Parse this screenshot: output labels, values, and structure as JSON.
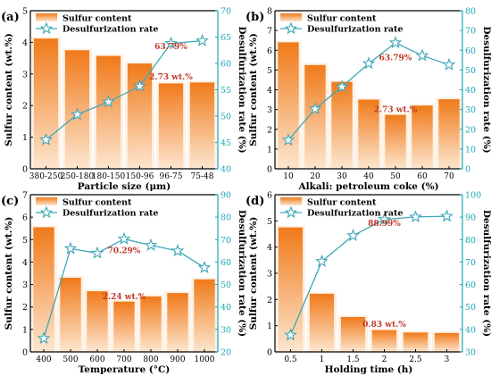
{
  "colors": {
    "bar_dark": "#f07a1a",
    "bar_light": "#fde6cf",
    "line": "#3fa7b8",
    "star_fill": "#ffffff",
    "annot": "#c0392b",
    "right_axis": "#1aa6b6",
    "left_axis": "#000000"
  },
  "icons": {
    "marker": "star-icon"
  },
  "chart_data": [
    {
      "panel": "(a)",
      "type": "bar",
      "categories": [
        "380-250",
        "250-180",
        "180-150",
        "150-96",
        "96-75",
        "75-48"
      ],
      "series": [
        {
          "name": "Sulfur content",
          "axis": "left",
          "values": [
            4.12,
            3.75,
            3.57,
            3.33,
            2.7,
            2.73
          ]
        },
        {
          "name": "Desulfurization rate",
          "axis": "right",
          "type": "line",
          "values": [
            45.5,
            50.3,
            52.7,
            55.7,
            63.79,
            64.3
          ]
        }
      ],
      "xlabel": "Particle size (μm)",
      "ylabel": "Sulfur content (wt.%)",
      "y2label": "Desulfurization rate (%)",
      "ylim": [
        0,
        5
      ],
      "yticks": [
        "0",
        "1",
        "2",
        "3",
        "4",
        "5"
      ],
      "y2lim": [
        40,
        70
      ],
      "y2ticks": [
        "40",
        "45",
        "50",
        "55",
        "60",
        "65",
        "70"
      ],
      "annotations": [
        {
          "text": "63.79%",
          "x_index": 4,
          "y": 62.7,
          "axis": "right"
        },
        {
          "text": "2.73 wt.%",
          "x_index": 4,
          "y": 2.82,
          "axis": "left"
        }
      ],
      "legend": [
        "Sulfur content",
        "Desulfurization rate"
      ],
      "legend_position": "top-left"
    },
    {
      "panel": "(b)",
      "type": "bar",
      "categories": [
        "10",
        "20",
        "30",
        "40",
        "50",
        "60",
        "70"
      ],
      "series": [
        {
          "name": "Sulfur content",
          "axis": "left",
          "values": [
            6.4,
            5.25,
            4.4,
            3.5,
            2.73,
            3.2,
            3.52
          ]
        },
        {
          "name": "Desulfurization rate",
          "axis": "right",
          "type": "line",
          "values": [
            14.5,
            30.3,
            41.5,
            53.3,
            63.79,
            57.3,
            52.6
          ]
        }
      ],
      "xlabel": "Alkali: petroleum coke (%)",
      "ylabel": "Sulfur content (wt.%)",
      "y2label": "Desulfurization rate (%)",
      "ylim": [
        0,
        8
      ],
      "yticks": [
        "0",
        "1",
        "2",
        "3",
        "4",
        "5",
        "6",
        "7",
        "8"
      ],
      "y2lim": [
        0,
        80
      ],
      "y2ticks": [
        "0",
        "10",
        "20",
        "30",
        "40",
        "50",
        "60",
        "70",
        "80"
      ],
      "annotations": [
        {
          "text": "63.79%",
          "x_index": 4,
          "y": 55,
          "axis": "right"
        },
        {
          "text": "2.73 wt.%",
          "x_index": 4,
          "y": 2.88,
          "axis": "left"
        }
      ],
      "legend": [
        "Sulfur content",
        "Desulfurization rate"
      ],
      "legend_position": "top-left"
    },
    {
      "panel": "(c)",
      "type": "bar",
      "categories": [
        "400",
        "500",
        "600",
        "700",
        "800",
        "900",
        "1000"
      ],
      "series": [
        {
          "name": "Sulfur content",
          "axis": "left",
          "values": [
            5.55,
            3.3,
            2.7,
            2.24,
            2.47,
            2.62,
            3.23
          ]
        },
        {
          "name": "Desulfurization rate",
          "axis": "right",
          "type": "line",
          "values": [
            26,
            66,
            64,
            70.29,
            67.5,
            65,
            57.5
          ]
        }
      ],
      "xlabel": "Temperature (°C)",
      "ylabel": "Sulfur content (wt.%)",
      "y2label": "Desulfurization rate (%)",
      "ylim": [
        0,
        7
      ],
      "yticks": [
        "0",
        "1",
        "2",
        "3",
        "4",
        "5",
        "6",
        "7"
      ],
      "y2lim": [
        20,
        90
      ],
      "y2ticks": [
        "20",
        "30",
        "40",
        "50",
        "60",
        "70",
        "80",
        "90"
      ],
      "annotations": [
        {
          "text": "70.29%",
          "x_index": 3,
          "y": 64,
          "axis": "right"
        },
        {
          "text": "2.24 wt.%",
          "x_index": 3,
          "y": 2.35,
          "axis": "left"
        }
      ],
      "legend": [
        "Sulfur content",
        "Desulfurization rate"
      ],
      "legend_position": "top-left"
    },
    {
      "panel": "(d)",
      "type": "bar",
      "categories": [
        "0.5",
        "1",
        "1.5",
        "2",
        "2.5",
        "3"
      ],
      "series": [
        {
          "name": "Sulfur content",
          "axis": "left",
          "values": [
            4.75,
            2.22,
            1.33,
            0.83,
            0.74,
            0.72
          ]
        },
        {
          "name": "Desulfurization rate",
          "axis": "right",
          "type": "line",
          "values": [
            37.5,
            70.3,
            81.8,
            88.99,
            90.1,
            90.4
          ]
        }
      ],
      "xlabel": "Holding time (h)",
      "ylabel": "Sulfur content (wt.%)",
      "y2label": "Desulfurization rate (%)",
      "ylim": [
        0,
        6
      ],
      "yticks": [
        "0",
        "1",
        "2",
        "3",
        "4",
        "5",
        "6"
      ],
      "y2lim": [
        30,
        100
      ],
      "y2ticks": [
        "30",
        "40",
        "50",
        "60",
        "70",
        "80",
        "90",
        "100"
      ],
      "annotations": [
        {
          "text": "88.99%",
          "x_index": 3,
          "y": 86,
          "axis": "right"
        },
        {
          "text": "0.83 wt.%",
          "x_index": 3,
          "y": 0.95,
          "axis": "left"
        }
      ],
      "legend": [
        "Sulfur content",
        "Desulfurization rate"
      ],
      "legend_position": "top-left"
    }
  ]
}
